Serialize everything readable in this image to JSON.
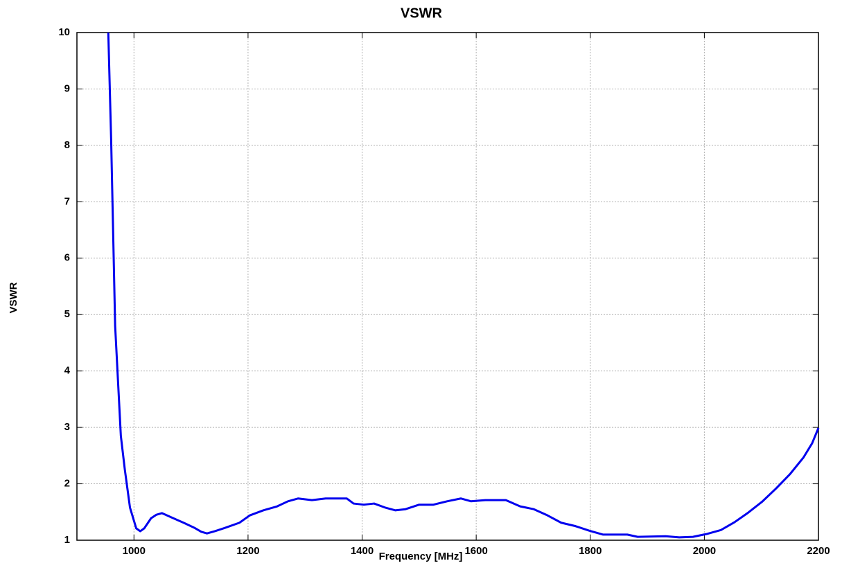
{
  "chart_data": {
    "type": "line",
    "title": "VSWR",
    "x_label": "Frequency [MHz]",
    "y_label": "VSWR",
    "x": [
      955,
      960,
      967,
      977,
      984,
      993,
      1004,
      1011,
      1018,
      1030,
      1039,
      1049,
      1069,
      1087,
      1106,
      1118,
      1128,
      1142,
      1160,
      1185,
      1203,
      1227,
      1251,
      1270,
      1288,
      1312,
      1336,
      1373,
      1385,
      1403,
      1421,
      1440,
      1458,
      1476,
      1500,
      1525,
      1549,
      1573,
      1591,
      1616,
      1652,
      1677,
      1701,
      1725,
      1749,
      1774,
      1798,
      1822,
      1865,
      1883,
      1932,
      1956,
      1980,
      2004,
      2029,
      2053,
      2077,
      2101,
      2126,
      2150,
      2174,
      2189,
      2200
    ],
    "values": [
      10,
      8.1,
      4.8,
      2.85,
      2.25,
      1.58,
      1.21,
      1.16,
      1.21,
      1.39,
      1.45,
      1.48,
      1.39,
      1.31,
      1.22,
      1.15,
      1.12,
      1.16,
      1.22,
      1.31,
      1.44,
      1.53,
      1.6,
      1.69,
      1.74,
      1.71,
      1.74,
      1.74,
      1.65,
      1.63,
      1.65,
      1.58,
      1.53,
      1.55,
      1.63,
      1.63,
      1.69,
      1.74,
      1.69,
      1.71,
      1.71,
      1.6,
      1.55,
      1.44,
      1.31,
      1.25,
      1.17,
      1.1,
      1.1,
      1.06,
      1.07,
      1.05,
      1.06,
      1.11,
      1.18,
      1.32,
      1.49,
      1.68,
      1.92,
      2.17,
      2.47,
      2.72,
      2.99
    ],
    "color": "#0000ee",
    "xlim": [
      900,
      2200
    ],
    "xticks": [
      1000,
      1200,
      1400,
      1600,
      1800,
      2000,
      2200
    ],
    "ylim": [
      1,
      10
    ],
    "yticks": [
      1,
      2,
      3,
      4,
      5,
      6,
      7,
      8,
      9,
      10
    ],
    "grid": true
  }
}
